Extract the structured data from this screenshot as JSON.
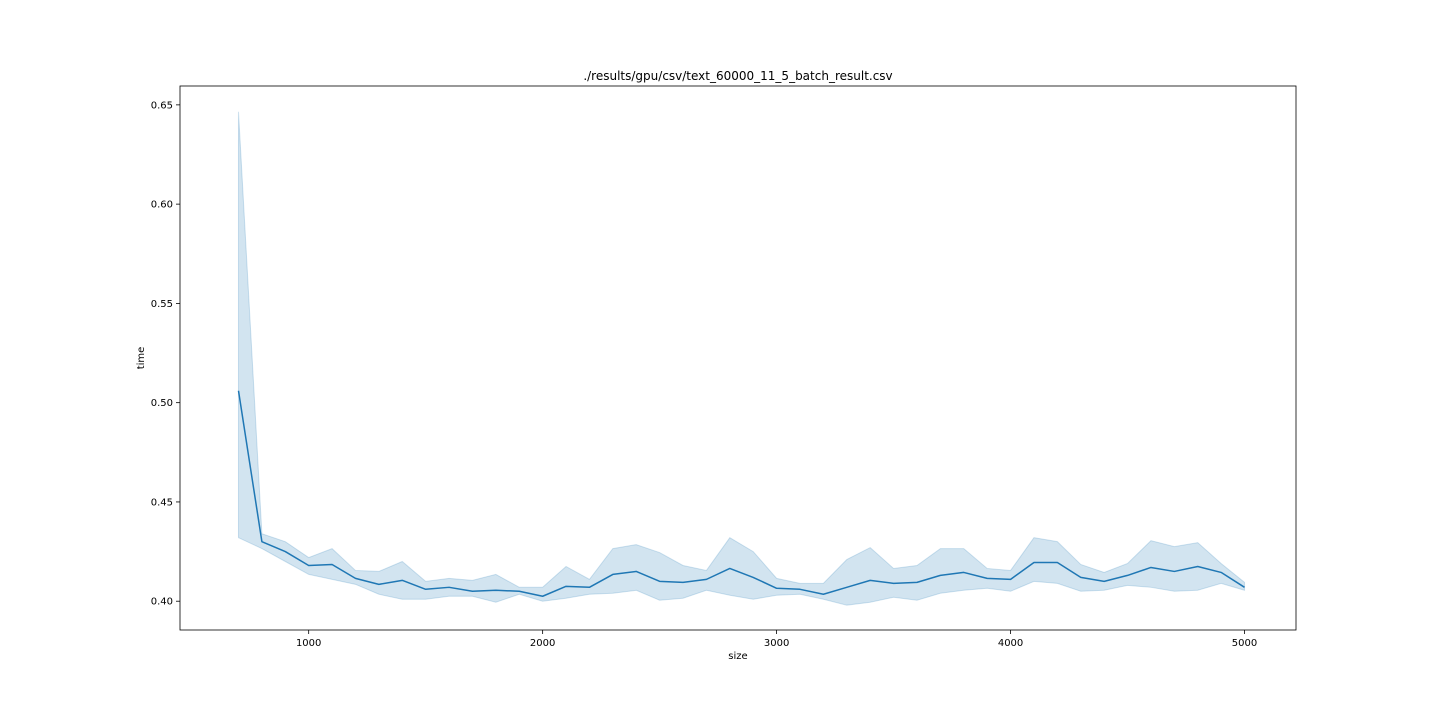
{
  "chart_data": {
    "type": "line",
    "title": "./results/gpu/csv/text_60000_11_5_batch_result.csv",
    "xlabel": "size",
    "ylabel": "time",
    "xlim": [
      450,
      5220
    ],
    "ylim": [
      0.3855,
      0.6595
    ],
    "xticks": [
      1000,
      2000,
      3000,
      4000,
      5000
    ],
    "xtick_labels": [
      "1000",
      "2000",
      "3000",
      "4000",
      "5000"
    ],
    "yticks": [
      0.4,
      0.45,
      0.5,
      0.55,
      0.6,
      0.65
    ],
    "ytick_labels": [
      "0.40",
      "0.45",
      "0.50",
      "0.55",
      "0.60",
      "0.65"
    ],
    "grid": false,
    "legend": "none",
    "colors": {
      "line": "#1f77b4",
      "band": "#1f77b4"
    },
    "x": [
      700,
      800,
      900,
      1000,
      1100,
      1200,
      1300,
      1400,
      1500,
      1600,
      1700,
      1800,
      1900,
      2000,
      2100,
      2200,
      2300,
      2400,
      2500,
      2600,
      2700,
      2800,
      2900,
      3000,
      3100,
      3200,
      3300,
      3400,
      3500,
      3600,
      3700,
      3800,
      3900,
      4000,
      4100,
      4200,
      4300,
      4400,
      4500,
      4600,
      4700,
      4800,
      4900,
      5000
    ],
    "series": [
      {
        "values": [
          0.506,
          0.43,
          0.425,
          0.418,
          0.4185,
          0.4115,
          0.4085,
          0.4105,
          0.406,
          0.407,
          0.405,
          0.4055,
          0.405,
          0.4025,
          0.4075,
          0.407,
          0.4135,
          0.415,
          0.41,
          0.4095,
          0.411,
          0.4165,
          0.412,
          0.4065,
          0.406,
          0.4035,
          0.407,
          0.4105,
          0.409,
          0.4095,
          0.413,
          0.4145,
          0.4115,
          0.411,
          0.4195,
          0.4195,
          0.412,
          0.41,
          0.413,
          0.417,
          0.415,
          0.4175,
          0.4145,
          0.407
        ],
        "lower": [
          0.432,
          0.4265,
          0.42,
          0.4135,
          0.411,
          0.4085,
          0.4035,
          0.401,
          0.401,
          0.4025,
          0.4025,
          0.3995,
          0.4035,
          0.4,
          0.4015,
          0.4035,
          0.404,
          0.4055,
          0.4005,
          0.4015,
          0.4055,
          0.403,
          0.401,
          0.403,
          0.4035,
          0.401,
          0.398,
          0.3995,
          0.402,
          0.4005,
          0.404,
          0.4055,
          0.4065,
          0.405,
          0.41,
          0.409,
          0.405,
          0.4055,
          0.408,
          0.407,
          0.405,
          0.4055,
          0.409,
          0.4055
        ],
        "upper": [
          0.6465,
          0.434,
          0.43,
          0.422,
          0.4265,
          0.4155,
          0.415,
          0.42,
          0.41,
          0.4115,
          0.4105,
          0.4135,
          0.407,
          0.407,
          0.4175,
          0.411,
          0.4265,
          0.4285,
          0.4245,
          0.418,
          0.4155,
          0.432,
          0.425,
          0.4115,
          0.409,
          0.409,
          0.421,
          0.427,
          0.4165,
          0.418,
          0.4265,
          0.4265,
          0.4165,
          0.4155,
          0.432,
          0.43,
          0.4185,
          0.4145,
          0.419,
          0.4305,
          0.4275,
          0.4295,
          0.419,
          0.4095
        ]
      }
    ]
  }
}
